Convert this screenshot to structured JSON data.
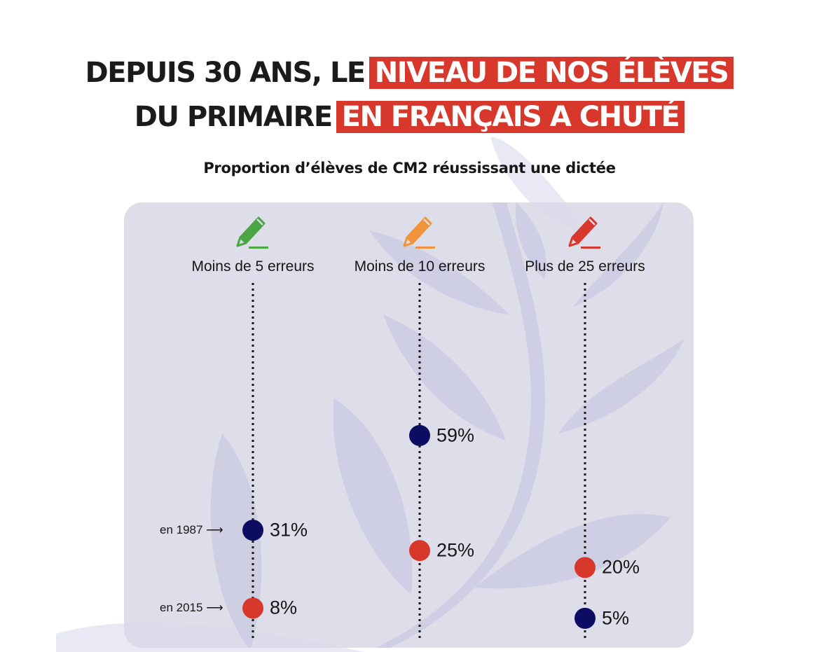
{
  "headline": {
    "line1_dark": "DEPUIS 30 ANS, LE",
    "line1_highlight": "NIVEAU DE NOS ÉLÈVES",
    "line2_dark": "DU PRIMAIRE",
    "line2_highlight": "EN FRANÇAIS A CHUTÉ"
  },
  "colors": {
    "highlight_red": "#d8382b",
    "point_1987": "#0c0c62",
    "point_2015": "#d8382b",
    "icon_green": "#4aa544",
    "icon_orange": "#f0943a",
    "icon_red": "#d8382b",
    "panel_bg": "#dcdce8",
    "leaf": "#c9c9e2"
  },
  "chart_data": {
    "type": "dot-plot",
    "title": "Proportion d’élèves de CM2 réussissant une dictée",
    "xlabel": "",
    "ylabel": "",
    "ylim": [
      0,
      100
    ],
    "grid": false,
    "legend": "inline-left",
    "categories": [
      "Moins de 5 erreurs",
      "Moins de 10 erreurs",
      "Plus de 25 erreurs"
    ],
    "category_icons": [
      "pencil-green-icon",
      "pencil-orange-icon",
      "pencil-red-icon"
    ],
    "series": [
      {
        "name": "en 1987",
        "values": [
          31,
          59,
          5
        ],
        "labels": [
          "31%",
          "59%",
          "5%"
        ]
      },
      {
        "name": "en 2015",
        "values": [
          8,
          25,
          20
        ],
        "labels": [
          "8%",
          "25%",
          "20%"
        ]
      }
    ]
  }
}
